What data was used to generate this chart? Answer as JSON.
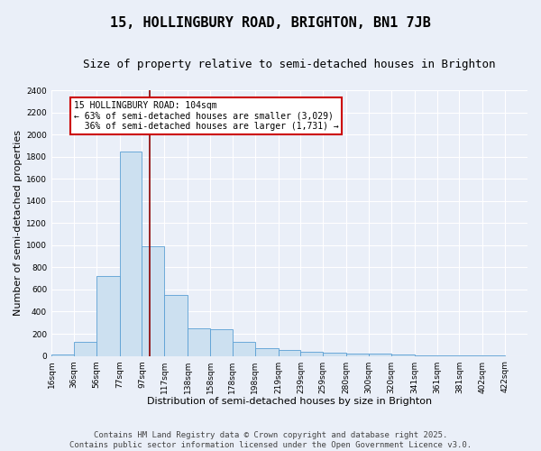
{
  "title": "15, HOLLINGBURY ROAD, BRIGHTON, BN1 7JB",
  "subtitle": "Size of property relative to semi-detached houses in Brighton",
  "xlabel": "Distribution of semi-detached houses by size in Brighton",
  "ylabel": "Number of semi-detached properties",
  "footnote": "Contains HM Land Registry data © Crown copyright and database right 2025.\nContains public sector information licensed under the Open Government Licence v3.0.",
  "bin_labels": [
    "16sqm",
    "36sqm",
    "56sqm",
    "77sqm",
    "97sqm",
    "117sqm",
    "138sqm",
    "158sqm",
    "178sqm",
    "198sqm",
    "219sqm",
    "239sqm",
    "259sqm",
    "280sqm",
    "300sqm",
    "320sqm",
    "341sqm",
    "361sqm",
    "381sqm",
    "402sqm",
    "422sqm"
  ],
  "bin_edges": [
    16,
    36,
    56,
    77,
    97,
    117,
    138,
    158,
    178,
    198,
    219,
    239,
    259,
    280,
    300,
    320,
    341,
    361,
    381,
    402,
    422
  ],
  "bar_heights": [
    10,
    130,
    720,
    1850,
    990,
    550,
    250,
    245,
    130,
    70,
    50,
    35,
    30,
    25,
    20,
    10,
    5,
    5,
    5,
    5
  ],
  "bar_color": "#cce0f0",
  "bar_edge_color": "#5a9fd4",
  "property_line_x": 104,
  "vline_color": "#8b0000",
  "annotation_text": "15 HOLLINGBURY ROAD: 104sqm\n← 63% of semi-detached houses are smaller (3,029)\n  36% of semi-detached houses are larger (1,731) →",
  "annotation_box_color": "#ffffff",
  "annotation_box_edge_color": "#cc0000",
  "ylim": [
    0,
    2400
  ],
  "yticks": [
    0,
    200,
    400,
    600,
    800,
    1000,
    1200,
    1400,
    1600,
    1800,
    2000,
    2200,
    2400
  ],
  "bg_color": "#eaeff8",
  "grid_color": "#ffffff",
  "title_fontsize": 11,
  "subtitle_fontsize": 9,
  "label_fontsize": 8,
  "tick_fontsize": 6.5,
  "footnote_fontsize": 6.5,
  "annotation_fontsize": 7
}
